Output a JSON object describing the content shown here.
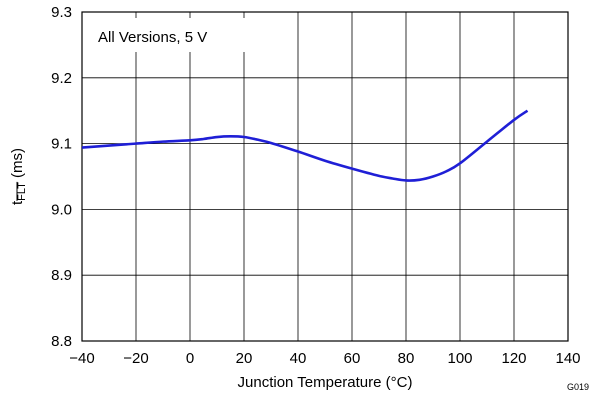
{
  "chart_data": {
    "type": "line",
    "xlabel": "Junction Temperature (°C)",
    "ylabel_main": "t",
    "ylabel_sub": "FLT",
    "ylabel_unit": " (ms)",
    "annotation": "All Versions, 5 V",
    "figure_id": "G019",
    "xlim": [
      -40,
      140
    ],
    "ylim": [
      8.8,
      9.3
    ],
    "x_ticks": [
      -40,
      -20,
      0,
      20,
      40,
      60,
      80,
      100,
      120,
      140
    ],
    "x_tick_labels": [
      "−40",
      "−20",
      "0",
      "20",
      "40",
      "60",
      "80",
      "100",
      "120",
      "140"
    ],
    "y_ticks": [
      8.8,
      8.9,
      9.0,
      9.1,
      9.2,
      9.3
    ],
    "y_tick_labels": [
      "8.8",
      "8.9",
      "9.0",
      "9.1",
      "9.2",
      "9.3"
    ],
    "grid": true,
    "line_color": "#1f1fd6",
    "series": [
      {
        "x": [
          -40,
          -30,
          -20,
          -10,
          0,
          5,
          10,
          15,
          20,
          25,
          30,
          40,
          50,
          60,
          70,
          75,
          80,
          85,
          90,
          95,
          100,
          110,
          120,
          125
        ],
        "y": [
          9.094,
          9.097,
          9.1,
          9.103,
          9.105,
          9.107,
          9.11,
          9.111,
          9.11,
          9.106,
          9.101,
          9.088,
          9.074,
          9.062,
          9.051,
          9.047,
          9.044,
          9.045,
          9.05,
          9.058,
          9.07,
          9.103,
          9.136,
          9.15
        ]
      }
    ]
  }
}
